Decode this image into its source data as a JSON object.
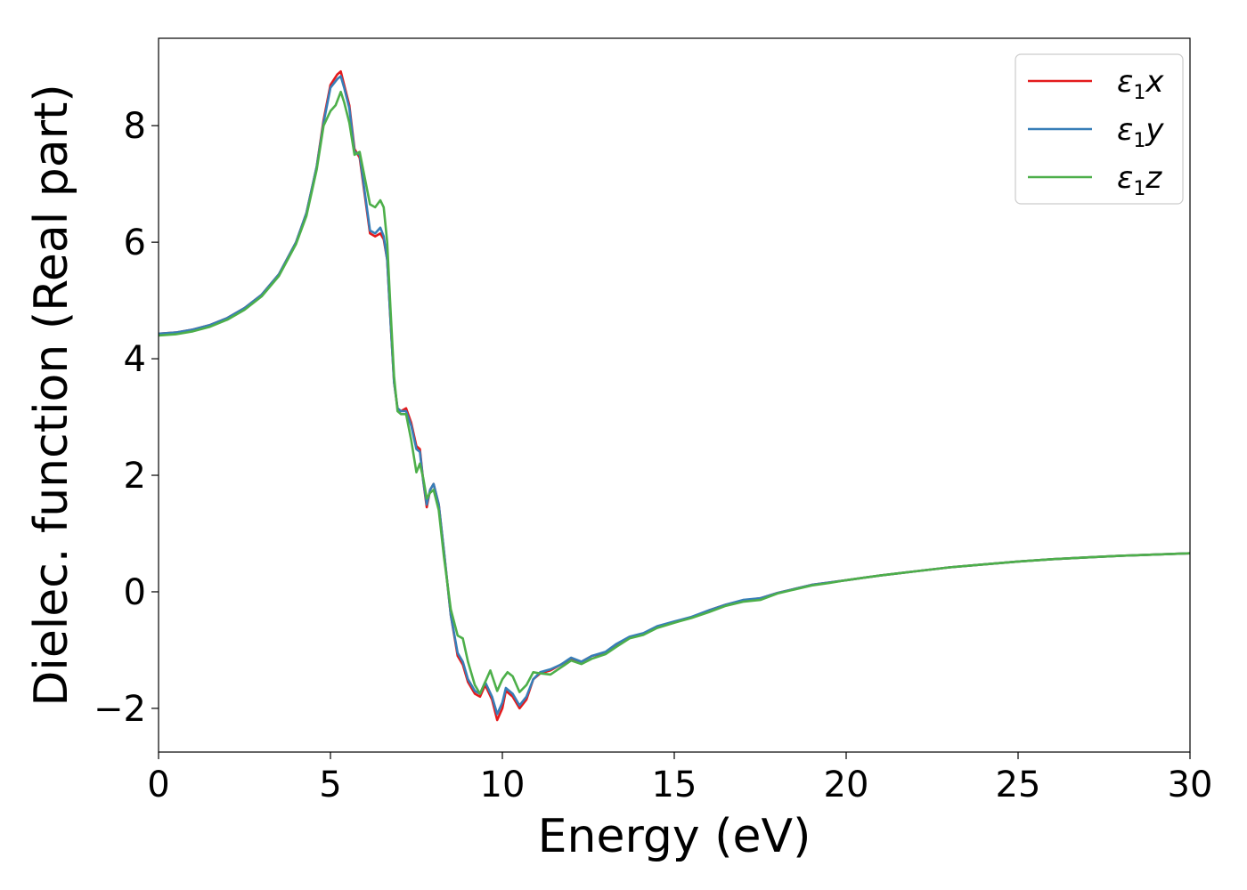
{
  "chart_data": {
    "type": "line",
    "title": "",
    "xlabel": "Energy (eV)",
    "ylabel": "Dielec. function (Real part)",
    "xlim": [
      0,
      30
    ],
    "ylim": [
      -2.75,
      9.5
    ],
    "xticks": [
      0,
      5,
      10,
      15,
      20,
      25,
      30
    ],
    "xtick_labels": [
      "0",
      "5",
      "10",
      "15",
      "20",
      "25",
      "30"
    ],
    "yticks": [
      -2,
      0,
      2,
      4,
      6,
      8
    ],
    "ytick_labels": [
      "−2",
      "0",
      "2",
      "4",
      "6",
      "8"
    ],
    "grid": false,
    "legend_position": "top-right",
    "series": [
      {
        "name": "ε1x",
        "legend_base": "ε",
        "legend_sub": "1",
        "legend_var": "x",
        "color": "#e41a1c",
        "points": [
          [
            0,
            4.43
          ],
          [
            0.5,
            4.45
          ],
          [
            1,
            4.5
          ],
          [
            1.5,
            4.58
          ],
          [
            2,
            4.7
          ],
          [
            2.5,
            4.87
          ],
          [
            3,
            5.1
          ],
          [
            3.5,
            5.45
          ],
          [
            4,
            6.0
          ],
          [
            4.3,
            6.5
          ],
          [
            4.6,
            7.3
          ],
          [
            4.8,
            8.1
          ],
          [
            5.0,
            8.7
          ],
          [
            5.2,
            8.88
          ],
          [
            5.3,
            8.93
          ],
          [
            5.4,
            8.7
          ],
          [
            5.55,
            8.35
          ],
          [
            5.7,
            7.6
          ],
          [
            5.85,
            7.45
          ],
          [
            6.0,
            6.8
          ],
          [
            6.15,
            6.15
          ],
          [
            6.3,
            6.1
          ],
          [
            6.45,
            6.15
          ],
          [
            6.55,
            6.05
          ],
          [
            6.65,
            5.7
          ],
          [
            6.75,
            4.6
          ],
          [
            6.85,
            3.6
          ],
          [
            6.95,
            3.15
          ],
          [
            7.05,
            3.1
          ],
          [
            7.2,
            3.15
          ],
          [
            7.35,
            2.9
          ],
          [
            7.5,
            2.5
          ],
          [
            7.6,
            2.45
          ],
          [
            7.7,
            1.9
          ],
          [
            7.8,
            1.45
          ],
          [
            7.9,
            1.75
          ],
          [
            8.0,
            1.85
          ],
          [
            8.15,
            1.5
          ],
          [
            8.3,
            0.7
          ],
          [
            8.5,
            -0.4
          ],
          [
            8.7,
            -1.1
          ],
          [
            8.85,
            -1.25
          ],
          [
            9.0,
            -1.55
          ],
          [
            9.2,
            -1.75
          ],
          [
            9.35,
            -1.8
          ],
          [
            9.5,
            -1.6
          ],
          [
            9.7,
            -1.85
          ],
          [
            9.85,
            -2.2
          ],
          [
            10.0,
            -2.0
          ],
          [
            10.1,
            -1.7
          ],
          [
            10.3,
            -1.8
          ],
          [
            10.5,
            -2.0
          ],
          [
            10.7,
            -1.85
          ],
          [
            10.9,
            -1.5
          ],
          [
            11.1,
            -1.4
          ],
          [
            11.4,
            -1.35
          ],
          [
            11.7,
            -1.25
          ],
          [
            12.0,
            -1.15
          ],
          [
            12.3,
            -1.2
          ],
          [
            12.6,
            -1.1
          ],
          [
            13.0,
            -1.05
          ],
          [
            13.3,
            -0.92
          ],
          [
            13.7,
            -0.78
          ],
          [
            14.1,
            -0.72
          ],
          [
            14.5,
            -0.6
          ],
          [
            15.0,
            -0.52
          ],
          [
            15.5,
            -0.44
          ],
          [
            16.0,
            -0.32
          ],
          [
            16.5,
            -0.22
          ],
          [
            17.0,
            -0.15
          ],
          [
            17.5,
            -0.11
          ],
          [
            18.0,
            -0.02
          ],
          [
            18.5,
            0.05
          ],
          [
            19.0,
            0.12
          ],
          [
            19.5,
            0.16
          ],
          [
            20.0,
            0.2
          ],
          [
            20.5,
            0.24
          ],
          [
            21.0,
            0.28
          ],
          [
            22.0,
            0.35
          ],
          [
            23.0,
            0.42
          ],
          [
            24.0,
            0.47
          ],
          [
            25.0,
            0.52
          ],
          [
            26.0,
            0.56
          ],
          [
            27.0,
            0.59
          ],
          [
            28.0,
            0.62
          ],
          [
            29.0,
            0.64
          ],
          [
            30.0,
            0.66
          ]
        ]
      },
      {
        "name": "ε1y",
        "legend_base": "ε",
        "legend_sub": "1",
        "legend_var": "y",
        "color": "#377eb8",
        "points": [
          [
            0,
            4.43
          ],
          [
            0.5,
            4.45
          ],
          [
            1,
            4.5
          ],
          [
            1.5,
            4.58
          ],
          [
            2,
            4.7
          ],
          [
            2.5,
            4.87
          ],
          [
            3,
            5.1
          ],
          [
            3.5,
            5.45
          ],
          [
            4,
            6.0
          ],
          [
            4.3,
            6.5
          ],
          [
            4.6,
            7.3
          ],
          [
            4.8,
            8.05
          ],
          [
            5.0,
            8.65
          ],
          [
            5.2,
            8.8
          ],
          [
            5.3,
            8.85
          ],
          [
            5.4,
            8.65
          ],
          [
            5.55,
            8.3
          ],
          [
            5.7,
            7.55
          ],
          [
            5.85,
            7.5
          ],
          [
            6.0,
            6.85
          ],
          [
            6.15,
            6.2
          ],
          [
            6.3,
            6.15
          ],
          [
            6.45,
            6.25
          ],
          [
            6.55,
            6.1
          ],
          [
            6.65,
            5.7
          ],
          [
            6.75,
            4.6
          ],
          [
            6.85,
            3.6
          ],
          [
            6.95,
            3.15
          ],
          [
            7.05,
            3.1
          ],
          [
            7.2,
            3.1
          ],
          [
            7.35,
            2.85
          ],
          [
            7.5,
            2.45
          ],
          [
            7.6,
            2.4
          ],
          [
            7.7,
            1.9
          ],
          [
            7.8,
            1.5
          ],
          [
            7.9,
            1.75
          ],
          [
            8.0,
            1.85
          ],
          [
            8.15,
            1.5
          ],
          [
            8.3,
            0.7
          ],
          [
            8.5,
            -0.4
          ],
          [
            8.7,
            -1.05
          ],
          [
            8.85,
            -1.2
          ],
          [
            9.0,
            -1.5
          ],
          [
            9.2,
            -1.7
          ],
          [
            9.35,
            -1.75
          ],
          [
            9.5,
            -1.55
          ],
          [
            9.7,
            -1.8
          ],
          [
            9.85,
            -2.1
          ],
          [
            10.0,
            -1.9
          ],
          [
            10.1,
            -1.65
          ],
          [
            10.3,
            -1.75
          ],
          [
            10.5,
            -1.95
          ],
          [
            10.7,
            -1.8
          ],
          [
            10.9,
            -1.5
          ],
          [
            11.1,
            -1.38
          ],
          [
            11.4,
            -1.33
          ],
          [
            11.7,
            -1.25
          ],
          [
            12.0,
            -1.13
          ],
          [
            12.3,
            -1.2
          ],
          [
            12.6,
            -1.1
          ],
          [
            13.0,
            -1.03
          ],
          [
            13.3,
            -0.9
          ],
          [
            13.7,
            -0.77
          ],
          [
            14.1,
            -0.71
          ],
          [
            14.5,
            -0.59
          ],
          [
            15.0,
            -0.51
          ],
          [
            15.5,
            -0.43
          ],
          [
            16.0,
            -0.32
          ],
          [
            16.5,
            -0.22
          ],
          [
            17.0,
            -0.14
          ],
          [
            17.5,
            -0.11
          ],
          [
            18.0,
            -0.02
          ],
          [
            18.5,
            0.05
          ],
          [
            19.0,
            0.12
          ],
          [
            19.5,
            0.16
          ],
          [
            20.0,
            0.2
          ],
          [
            20.5,
            0.24
          ],
          [
            21.0,
            0.28
          ],
          [
            22.0,
            0.35
          ],
          [
            23.0,
            0.42
          ],
          [
            24.0,
            0.47
          ],
          [
            25.0,
            0.52
          ],
          [
            26.0,
            0.56
          ],
          [
            27.0,
            0.59
          ],
          [
            28.0,
            0.62
          ],
          [
            29.0,
            0.64
          ],
          [
            30.0,
            0.66
          ]
        ]
      },
      {
        "name": "ε1z",
        "legend_base": "ε",
        "legend_sub": "1",
        "legend_var": "z",
        "color": "#4daf4a",
        "points": [
          [
            0,
            4.4
          ],
          [
            0.5,
            4.42
          ],
          [
            1,
            4.47
          ],
          [
            1.5,
            4.55
          ],
          [
            2,
            4.67
          ],
          [
            2.5,
            4.84
          ],
          [
            3,
            5.07
          ],
          [
            3.5,
            5.42
          ],
          [
            4,
            5.97
          ],
          [
            4.3,
            6.45
          ],
          [
            4.6,
            7.25
          ],
          [
            4.8,
            8.0
          ],
          [
            5.0,
            8.25
          ],
          [
            5.15,
            8.35
          ],
          [
            5.3,
            8.58
          ],
          [
            5.4,
            8.4
          ],
          [
            5.55,
            8.05
          ],
          [
            5.7,
            7.5
          ],
          [
            5.85,
            7.55
          ],
          [
            6.0,
            7.1
          ],
          [
            6.15,
            6.65
          ],
          [
            6.3,
            6.6
          ],
          [
            6.45,
            6.72
          ],
          [
            6.55,
            6.6
          ],
          [
            6.65,
            6.0
          ],
          [
            6.75,
            4.8
          ],
          [
            6.85,
            3.7
          ],
          [
            6.95,
            3.1
          ],
          [
            7.05,
            3.05
          ],
          [
            7.2,
            3.05
          ],
          [
            7.35,
            2.6
          ],
          [
            7.5,
            2.05
          ],
          [
            7.6,
            2.2
          ],
          [
            7.7,
            1.95
          ],
          [
            7.8,
            1.6
          ],
          [
            7.9,
            1.7
          ],
          [
            8.0,
            1.75
          ],
          [
            8.15,
            1.4
          ],
          [
            8.3,
            0.6
          ],
          [
            8.5,
            -0.3
          ],
          [
            8.7,
            -0.75
          ],
          [
            8.85,
            -0.8
          ],
          [
            9.0,
            -1.2
          ],
          [
            9.2,
            -1.6
          ],
          [
            9.35,
            -1.75
          ],
          [
            9.5,
            -1.55
          ],
          [
            9.65,
            -1.35
          ],
          [
            9.85,
            -1.7
          ],
          [
            10.0,
            -1.5
          ],
          [
            10.15,
            -1.38
          ],
          [
            10.3,
            -1.45
          ],
          [
            10.5,
            -1.72
          ],
          [
            10.7,
            -1.6
          ],
          [
            10.9,
            -1.38
          ],
          [
            11.1,
            -1.4
          ],
          [
            11.4,
            -1.42
          ],
          [
            11.7,
            -1.3
          ],
          [
            12.0,
            -1.18
          ],
          [
            12.3,
            -1.24
          ],
          [
            12.6,
            -1.15
          ],
          [
            13.0,
            -1.07
          ],
          [
            13.3,
            -0.95
          ],
          [
            13.7,
            -0.8
          ],
          [
            14.1,
            -0.74
          ],
          [
            14.5,
            -0.62
          ],
          [
            15.0,
            -0.53
          ],
          [
            15.5,
            -0.45
          ],
          [
            16.0,
            -0.35
          ],
          [
            16.5,
            -0.24
          ],
          [
            17.0,
            -0.17
          ],
          [
            17.5,
            -0.14
          ],
          [
            18.0,
            -0.03
          ],
          [
            18.5,
            0.04
          ],
          [
            19.0,
            0.11
          ],
          [
            19.5,
            0.15
          ],
          [
            20.0,
            0.2
          ],
          [
            20.5,
            0.24
          ],
          [
            21.0,
            0.28
          ],
          [
            22.0,
            0.35
          ],
          [
            23.0,
            0.42
          ],
          [
            24.0,
            0.47
          ],
          [
            25.0,
            0.52
          ],
          [
            26.0,
            0.56
          ],
          [
            27.0,
            0.59
          ],
          [
            28.0,
            0.62
          ],
          [
            29.0,
            0.64
          ],
          [
            30.0,
            0.66
          ]
        ]
      }
    ]
  }
}
